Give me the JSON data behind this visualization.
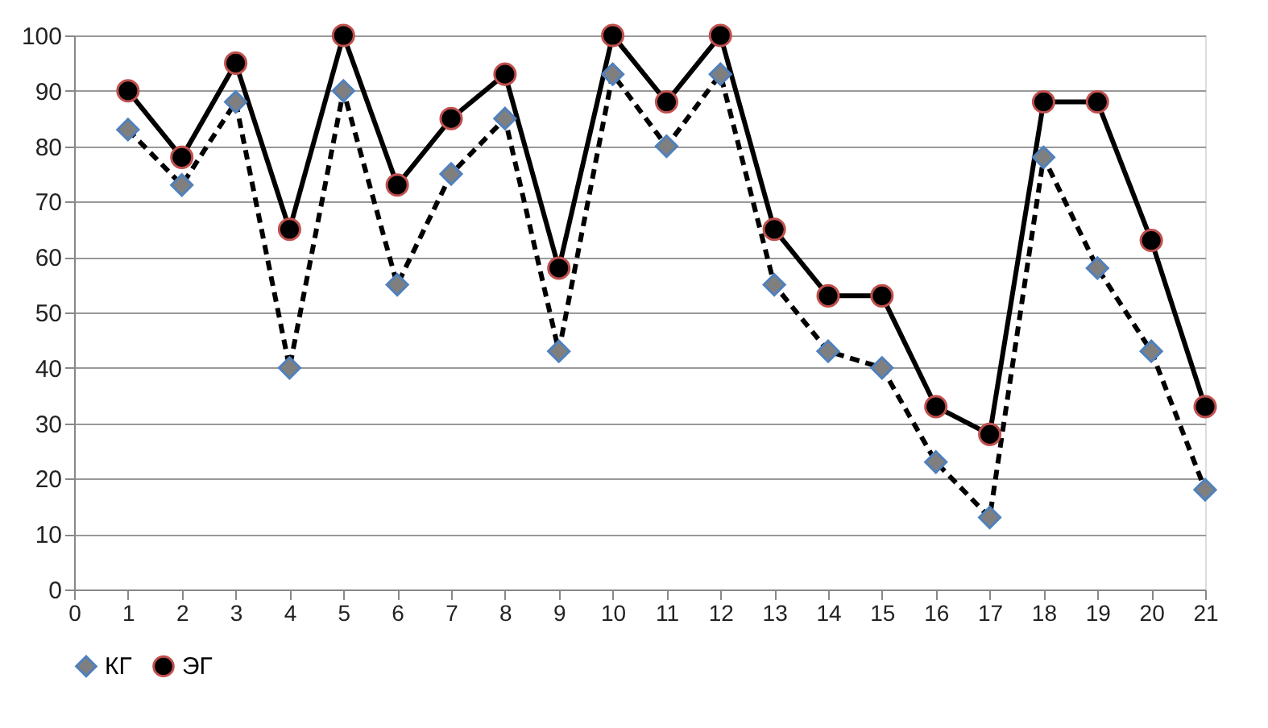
{
  "chart_data": {
    "type": "line",
    "x": [
      1,
      2,
      3,
      4,
      5,
      6,
      7,
      8,
      9,
      10,
      11,
      12,
      13,
      14,
      15,
      16,
      17,
      18,
      19,
      20,
      21
    ],
    "xlim": [
      0,
      21
    ],
    "xticks": [
      0,
      1,
      2,
      3,
      4,
      5,
      6,
      7,
      8,
      9,
      10,
      11,
      12,
      13,
      14,
      15,
      16,
      17,
      18,
      19,
      20,
      21
    ],
    "ylim": [
      0,
      100
    ],
    "yticks": [
      0,
      10,
      20,
      30,
      40,
      50,
      60,
      70,
      80,
      90,
      100
    ],
    "grid": "y",
    "legend": "bottom",
    "series": [
      {
        "name": "КГ",
        "color": "#000000",
        "marker": "diamond",
        "line_style": "dashed",
        "values": [
          83,
          73,
          88,
          40,
          90,
          55,
          75,
          85,
          43,
          93,
          80,
          93,
          55,
          43,
          40,
          23,
          13,
          78,
          58,
          43,
          18
        ]
      },
      {
        "name": "ЭГ",
        "color": "#000000",
        "marker": "circle",
        "line_style": "solid",
        "values": [
          90,
          78,
          95,
          65,
          100,
          73,
          85,
          93,
          58,
          100,
          88,
          100,
          65,
          53,
          53,
          33,
          28,
          88,
          88,
          63,
          33
        ]
      }
    ]
  }
}
